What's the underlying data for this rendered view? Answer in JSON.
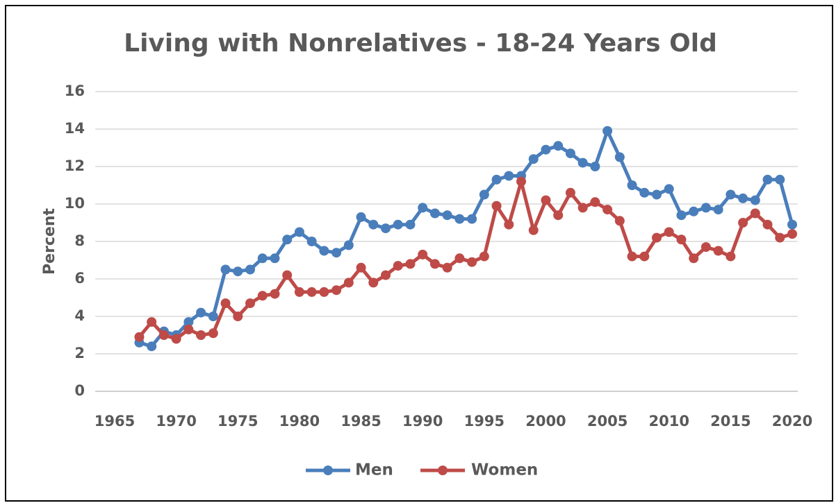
{
  "chart_data": {
    "type": "line",
    "title": "Living with Nonrelatives - 18-24 Years Old",
    "y_label": "Percent",
    "x": [
      1967,
      1968,
      1969,
      1970,
      1971,
      1972,
      1973,
      1974,
      1975,
      1976,
      1977,
      1978,
      1979,
      1980,
      1981,
      1982,
      1983,
      1984,
      1985,
      1986,
      1987,
      1988,
      1989,
      1990,
      1991,
      1992,
      1993,
      1994,
      1995,
      1996,
      1997,
      1998,
      1999,
      2000,
      2001,
      2002,
      2003,
      2004,
      2005,
      2006,
      2007,
      2008,
      2009,
      2010,
      2011,
      2012,
      2013,
      2014,
      2015,
      2016,
      2017,
      2018,
      2019,
      2020
    ],
    "series": [
      {
        "name": "Men",
        "color": "#4a7ebb",
        "values": [
          2.6,
          2.4,
          3.2,
          3.0,
          3.7,
          4.2,
          4.0,
          6.5,
          6.4,
          6.5,
          7.1,
          7.1,
          8.1,
          8.5,
          8.0,
          7.5,
          7.4,
          7.8,
          9.3,
          8.9,
          8.7,
          8.9,
          8.9,
          9.8,
          9.5,
          9.4,
          9.2,
          9.2,
          10.5,
          11.3,
          11.5,
          11.5,
          12.4,
          12.9,
          13.1,
          12.7,
          12.2,
          12.0,
          13.9,
          12.5,
          11.0,
          10.6,
          10.5,
          10.8,
          9.4,
          9.6,
          9.8,
          9.7,
          10.5,
          10.3,
          10.2,
          11.3,
          11.3,
          8.9
        ]
      },
      {
        "name": "Women",
        "color": "#be4b48",
        "values": [
          2.9,
          3.7,
          3.0,
          2.8,
          3.3,
          3.0,
          3.1,
          4.7,
          4.0,
          4.7,
          5.1,
          5.2,
          6.2,
          5.3,
          5.3,
          5.3,
          5.4,
          5.8,
          6.6,
          5.8,
          6.2,
          6.7,
          6.8,
          7.3,
          6.8,
          6.6,
          7.1,
          6.9,
          7.2,
          9.9,
          8.9,
          11.2,
          8.6,
          10.2,
          9.4,
          10.6,
          9.8,
          10.1,
          9.7,
          9.1,
          7.2,
          7.2,
          8.2,
          8.5,
          8.1,
          7.1,
          7.7,
          7.5,
          7.2,
          9.0,
          9.5,
          8.9,
          8.2,
          8.4
        ]
      }
    ],
    "xlim": [
      1965,
      2020
    ],
    "xticks": [
      1965,
      1970,
      1975,
      1980,
      1985,
      1990,
      1995,
      2000,
      2005,
      2010,
      2015,
      2020
    ],
    "ylim": [
      0,
      16
    ],
    "yticks": [
      0,
      2,
      4,
      6,
      8,
      10,
      12,
      14,
      16
    ],
    "grid": true,
    "legend": "bottom"
  }
}
